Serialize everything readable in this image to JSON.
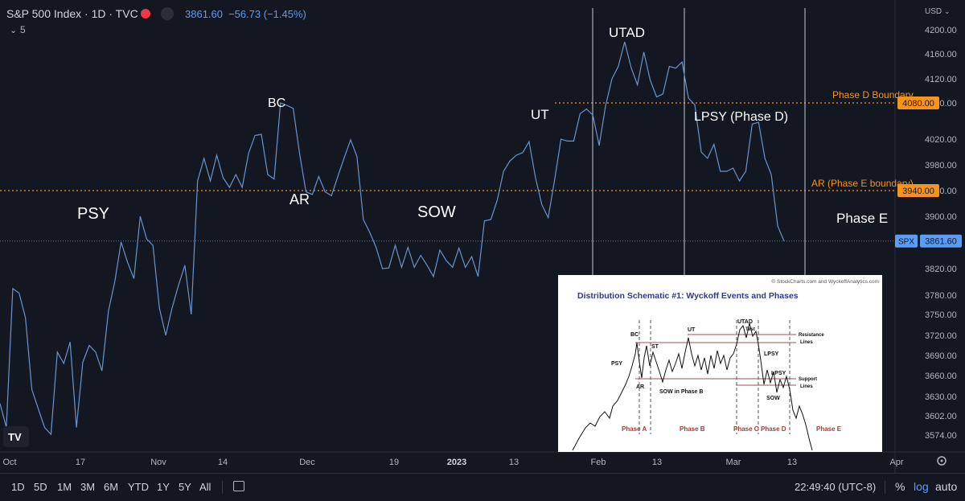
{
  "header": {
    "symbol": "S&P 500 Index · 1D · TVC",
    "price": "3861.60",
    "change": "−56.73 (−1.45%)",
    "indicator_count": "5",
    "currency": "USD"
  },
  "colors": {
    "background": "#131722",
    "line": "#6a93c9",
    "level": "#f7931a",
    "price_tag": "#5b9cf6",
    "text": "#d1d4dc"
  },
  "chart_data": {
    "type": "line",
    "ylim": [
      3555,
      4220
    ],
    "y_ticks": [
      4200,
      4160,
      4120,
      4080,
      4020,
      3980,
      3940,
      3900,
      3860,
      3820,
      3780,
      3750,
      3720,
      3690,
      3660,
      3630,
      3602,
      3574
    ],
    "x_ticks": [
      "Oct",
      "17",
      "Nov",
      "14",
      "Dec",
      "19",
      "2023",
      "13",
      "Feb",
      "13",
      "Mar",
      "13",
      "Apr"
    ],
    "series": [
      {
        "values": [
          3620,
          3585,
          3790,
          3783,
          3745,
          3640,
          3612,
          3585,
          3575,
          3695,
          3678,
          3710,
          3585,
          3680,
          3705,
          3695,
          3667,
          3755,
          3800,
          3860,
          3830,
          3805,
          3900,
          3865,
          3855,
          3760,
          3720,
          3760,
          3795,
          3825,
          3750,
          3955,
          3990,
          3955,
          3995,
          3960,
          3945,
          3965,
          3945,
          3998,
          4026,
          4028,
          3965,
          3958,
          4080,
          4076,
          4071,
          3997,
          3938,
          3934,
          3962,
          3938,
          3932,
          3962,
          3991,
          4019,
          3993,
          3895,
          3875,
          3852,
          3820,
          3821,
          3855,
          3822,
          3852,
          3822,
          3840,
          3825,
          3808,
          3848,
          3832,
          3822,
          3851,
          3822,
          3838,
          3808,
          3893,
          3895,
          3925,
          3970,
          3986,
          3995,
          3999,
          4016,
          3960,
          3918,
          3898,
          3956,
          4020,
          4017,
          4017,
          4062,
          4070,
          4060,
          4010,
          4075,
          4120,
          4140,
          4180,
          4138,
          4110,
          4163,
          4118,
          4090,
          4095,
          4140,
          4137,
          4147,
          4088,
          4077,
          4000,
          3990,
          4012,
          3970,
          3970,
          3975,
          3955,
          3970,
          4045,
          4048,
          3990,
          3965,
          3885,
          3861.6
        ]
      }
    ],
    "levels": [
      {
        "value": 4080.0,
        "label": "Phase D Boundary",
        "tag": "4080.00"
      },
      {
        "value": 3940.0,
        "label": "AR (Phase E boundary)",
        "tag": "3940.00"
      }
    ],
    "last_price": {
      "value": 3861.6,
      "label": "SPX",
      "tag": "3861.60"
    },
    "annotations": [
      "PSY",
      "BC",
      "AR",
      "SOW",
      "UT",
      "UTAD",
      "LPSY (Phase D)",
      "Phase E"
    ]
  },
  "inset": {
    "credit": "© StockCharts.com and WyckoffAnalytics.com",
    "title": "Distribution Schematic #1: Wyckoff Events and Phases",
    "labels": [
      "BC",
      "ST",
      "UT",
      "UTAD",
      "Test",
      "PSY",
      "AR",
      "SOW in Phase B",
      "LPSY",
      "LPSY",
      "SOW"
    ],
    "resistance_label": "Resistance",
    "resistance_label2": "Lines",
    "support_label": "Support",
    "support_label2": "Lines",
    "phases": [
      "Phase A",
      "Phase B",
      "Phase C",
      "Phase D",
      "Phase E"
    ]
  },
  "toolbar": {
    "timeframes": [
      "1D",
      "5D",
      "1M",
      "3M",
      "6M",
      "YTD",
      "1Y",
      "5Y",
      "All"
    ],
    "clock": "22:49:40 (UTC-8)",
    "percent": "%",
    "log": "log",
    "auto": "auto"
  }
}
